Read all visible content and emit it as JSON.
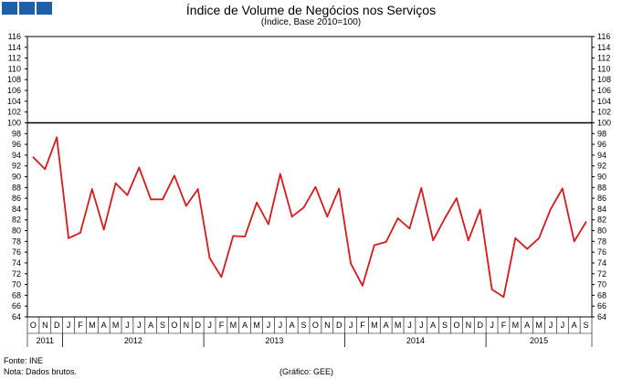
{
  "logo": {
    "colors": [
      "#1f5fa8",
      "#1f5fa8",
      "#1f5fa8"
    ]
  },
  "chart_data": {
    "type": "line",
    "title": "Índice de Volume de Negócios nos Serviços",
    "subtitle": "(Índice, Base 2010=100)",
    "ylim": [
      64,
      116
    ],
    "yticks": [
      64,
      66,
      68,
      70,
      72,
      74,
      76,
      78,
      80,
      82,
      84,
      86,
      88,
      90,
      92,
      94,
      96,
      98,
      100,
      102,
      104,
      106,
      108,
      110,
      112,
      114,
      116
    ],
    "reference_line": 100,
    "month_labels": [
      "O",
      "N",
      "D",
      "J",
      "F",
      "M",
      "A",
      "M",
      "J",
      "J",
      "A",
      "S",
      "O",
      "N",
      "D",
      "J",
      "F",
      "M",
      "A",
      "M",
      "J",
      "J",
      "A",
      "S",
      "O",
      "N",
      "D",
      "J",
      "F",
      "M",
      "A",
      "M",
      "J",
      "J",
      "A",
      "S",
      "O",
      "N",
      "D",
      "J",
      "F",
      "M",
      "A",
      "M",
      "J",
      "J",
      "A",
      "S"
    ],
    "years": [
      {
        "label": "2011",
        "start": 0,
        "count": 3
      },
      {
        "label": "2012",
        "start": 3,
        "count": 12
      },
      {
        "label": "2013",
        "start": 15,
        "count": 12
      },
      {
        "label": "2014",
        "start": 27,
        "count": 12
      },
      {
        "label": "2015",
        "start": 39,
        "count": 9
      }
    ],
    "series": [
      {
        "color": "#d7191c",
        "values": [
          93.6,
          91.4,
          97.3,
          78.6,
          79.6,
          87.7,
          80.2,
          88.8,
          86.6,
          91.7,
          85.8,
          85.8,
          90.2,
          84.6,
          87.7,
          74.9,
          71.4,
          79.0,
          78.9,
          85.2,
          81.2,
          90.5,
          82.6,
          84.3,
          88.1,
          82.6,
          87.8,
          73.9,
          69.8,
          77.3,
          77.9,
          82.3,
          80.4,
          87.9,
          78.2,
          82.3,
          86.0,
          78.2,
          83.9,
          69.1,
          67.7,
          78.6,
          76.6,
          78.6,
          84.0,
          87.8,
          78.0,
          81.6
        ]
      }
    ]
  },
  "footer": {
    "source": "Fonte: INE",
    "note": "Nota: Dados brutos.",
    "credit": "(Gráfico: GEE)"
  }
}
